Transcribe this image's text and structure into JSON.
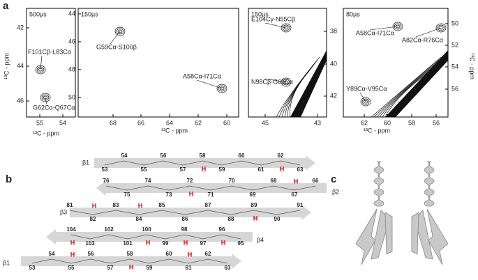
{
  "panel_a": {
    "label": "a",
    "ylabel": "¹³C - ppm",
    "spectra": [
      {
        "time": "500µs",
        "xticks": [
          "55",
          "54"
        ],
        "yticks": [
          "42",
          "44",
          "46"
        ],
        "xlabel": "¹³C - ppm",
        "peaks": [
          "F101Cβ-L83Cα",
          "G62Cα-Q67Cα"
        ]
      },
      {
        "time": "150µs",
        "xticks": [
          "68",
          "66",
          "64",
          "62",
          "60"
        ],
        "yticks": [
          "44",
          "46",
          "48",
          "50"
        ],
        "xlabel": "¹³C - ppm",
        "peaks": [
          "G59Cα-S100β",
          "A58Cα-I71Cα"
        ]
      },
      {
        "time": "150µs",
        "xticks": [
          "45",
          "43"
        ],
        "yticks": [
          "38",
          "40",
          "42"
        ],
        "peaks": [
          "E104Cγ-N55Cβ",
          "N98Cβ-G61Cα"
        ]
      },
      {
        "time": "80µs",
        "xticks": [
          "62",
          "60",
          "58",
          "56"
        ],
        "yticks": [
          "50",
          "52",
          "54",
          "56"
        ],
        "xlabel": "¹³C - ppm",
        "peaks": [
          "A58Cα-I71Cα",
          "A82Cα-R76Cα",
          "Y89Cα-V95Cα"
        ]
      }
    ]
  },
  "panel_b": {
    "label": "b",
    "h_label": "H",
    "strands": [
      {
        "name": "β1",
        "residues": [
          "53",
          "54",
          "55",
          "56",
          "57",
          "58",
          "59",
          "60",
          "61",
          "62",
          "63"
        ]
      },
      {
        "name": "β2",
        "residues": [
          "76",
          "75",
          "74",
          "73",
          "72",
          "71",
          "70",
          "69",
          "68",
          "67",
          "66"
        ]
      },
      {
        "name": "β3",
        "residues": [
          "81",
          "82",
          "83",
          "84",
          "85",
          "86",
          "87",
          "88",
          "89",
          "90",
          "91"
        ]
      },
      {
        "name": "β4",
        "residues": [
          "104",
          "103",
          "102",
          "101",
          "100",
          "99",
          "98",
          "97",
          "96",
          "95"
        ]
      },
      {
        "name": "β1",
        "residues": [
          "53",
          "54",
          "55",
          "56",
          "57",
          "58",
          "59",
          "60",
          "61",
          "62",
          "63"
        ]
      }
    ]
  },
  "panel_c": {
    "label": "c"
  }
}
